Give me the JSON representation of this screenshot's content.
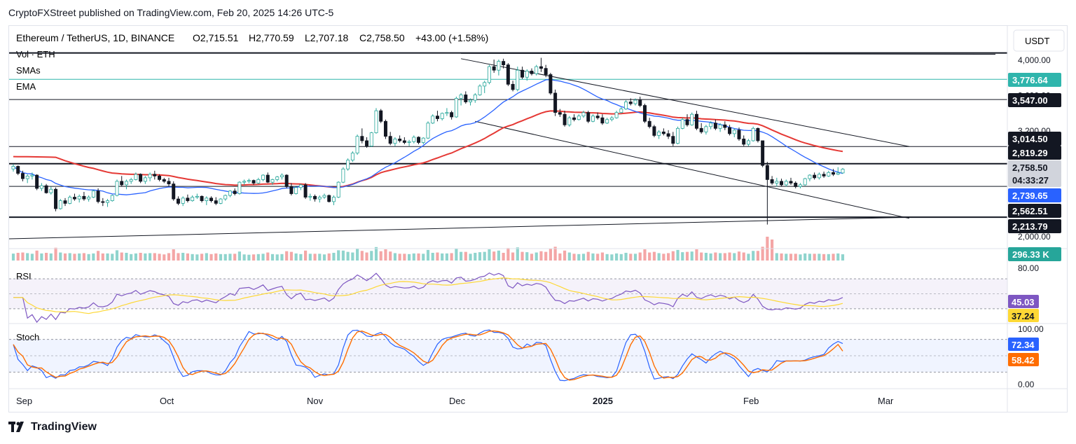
{
  "header": {
    "publisher": "CryptoFXStreet published on TradingView.com, Feb 20, 2025 14:26 UTC-5",
    "symbol": "Ethereum / TetherUS, 1D, BINANCE",
    "open_label": "O",
    "open": "2,715.51",
    "high_label": "H",
    "high": "2,770.59",
    "low_label": "L",
    "low": "2,707.18",
    "close_label": "C",
    "close": "2,758.50",
    "change": "+43.00 (+1.58%)",
    "currency": "USDT"
  },
  "indicators": {
    "vol": "Vol · ETH",
    "smas": "SMAs",
    "ema": "EMA",
    "rsi": "RSI",
    "stoch": "Stoch"
  },
  "price_axis": {
    "ticks": [
      "4,000.00",
      "3,600.00",
      "3,200.00",
      "2,000.00"
    ],
    "labels": [
      {
        "text": "3,776.64",
        "bg": "#2fb5ac",
        "fg": "#ffffff"
      },
      {
        "text": "3,547.00",
        "bg": "#131722",
        "fg": "#ffffff"
      },
      {
        "text": "3,014.50",
        "bg": "#131722",
        "fg": "#ffffff"
      },
      {
        "text": "2,819.29",
        "bg": "#131722",
        "fg": "#ffffff"
      },
      {
        "text": "2,758.50",
        "bg": "#d1d4dc",
        "fg": "#131722"
      },
      {
        "text": "04:33:27",
        "bg": "#d1d4dc",
        "fg": "#131722"
      },
      {
        "text": "2,739.65",
        "bg": "#2962ff",
        "fg": "#ffffff"
      },
      {
        "text": "2,562.51",
        "bg": "#131722",
        "fg": "#ffffff"
      },
      {
        "text": "2,213.79",
        "bg": "#131722",
        "fg": "#ffffff"
      },
      {
        "text": "296.33 K",
        "bg": "#26a69a",
        "fg": "#ffffff"
      }
    ]
  },
  "rsi_axis": {
    "top": "80.00",
    "labels": [
      {
        "text": "45.03",
        "bg": "#7e57c2",
        "fg": "#ffffff"
      },
      {
        "text": "37.24",
        "bg": "#fdd835",
        "fg": "#131722"
      }
    ]
  },
  "stoch_axis": {
    "top": "100.00",
    "bottom": "0.00",
    "labels": [
      {
        "text": "72.34",
        "bg": "#2962ff",
        "fg": "#ffffff"
      },
      {
        "text": "58.42",
        "bg": "#ff6d00",
        "fg": "#ffffff"
      }
    ]
  },
  "time_axis": [
    "Sep",
    "Oct",
    "Nov",
    "Dec",
    "2025",
    "Feb",
    "Mar"
  ],
  "colors": {
    "up": "#26a69a",
    "down": "#131722",
    "ema": "#e53935",
    "sma": "#2962ff",
    "rsi": "#7e57c2",
    "rsi_ma": "#fdd835",
    "stoch_k": "#2962ff",
    "stoch_d": "#ff6d00",
    "vol_up": "#8fd4cd",
    "vol_down": "#f4a6a6"
  },
  "footer": {
    "brand": "TradingView"
  },
  "chart_data": {
    "type": "candlestick",
    "price_ylim": [
      2000,
      4080
    ],
    "ohlc": [
      [
        2760,
        2815,
        2730,
        2790
      ],
      [
        2790,
        2800,
        2690,
        2710
      ],
      [
        2710,
        2740,
        2620,
        2650
      ],
      [
        2650,
        2700,
        2600,
        2680
      ],
      [
        2680,
        2720,
        2640,
        2690
      ],
      [
        2690,
        2700,
        2520,
        2540
      ],
      [
        2540,
        2600,
        2510,
        2570
      ],
      [
        2570,
        2590,
        2480,
        2490
      ],
      [
        2490,
        2560,
        2470,
        2530
      ],
      [
        2530,
        2550,
        2280,
        2310
      ],
      [
        2310,
        2420,
        2300,
        2400
      ],
      [
        2400,
        2430,
        2340,
        2370
      ],
      [
        2370,
        2460,
        2360,
        2440
      ],
      [
        2440,
        2480,
        2400,
        2420
      ],
      [
        2420,
        2470,
        2380,
        2450
      ],
      [
        2450,
        2500,
        2400,
        2420
      ],
      [
        2420,
        2460,
        2390,
        2440
      ],
      [
        2440,
        2520,
        2430,
        2510
      ],
      [
        2510,
        2540,
        2370,
        2390
      ],
      [
        2390,
        2430,
        2340,
        2380
      ],
      [
        2380,
        2420,
        2330,
        2400
      ],
      [
        2400,
        2470,
        2390,
        2460
      ],
      [
        2460,
        2640,
        2450,
        2620
      ],
      [
        2620,
        2680,
        2560,
        2580
      ],
      [
        2580,
        2640,
        2530,
        2620
      ],
      [
        2620,
        2660,
        2590,
        2640
      ],
      [
        2640,
        2720,
        2630,
        2700
      ],
      [
        2700,
        2710,
        2600,
        2620
      ],
      [
        2620,
        2680,
        2590,
        2660
      ],
      [
        2660,
        2720,
        2620,
        2700
      ],
      [
        2700,
        2740,
        2640,
        2680
      ],
      [
        2680,
        2700,
        2620,
        2640
      ],
      [
        2640,
        2660,
        2600,
        2620
      ],
      [
        2620,
        2660,
        2560,
        2590
      ],
      [
        2590,
        2620,
        2400,
        2420
      ],
      [
        2420,
        2450,
        2350,
        2370
      ],
      [
        2370,
        2450,
        2340,
        2430
      ],
      [
        2430,
        2470,
        2380,
        2400
      ],
      [
        2400,
        2460,
        2390,
        2440
      ],
      [
        2440,
        2480,
        2420,
        2450
      ],
      [
        2450,
        2460,
        2380,
        2400
      ],
      [
        2400,
        2450,
        2350,
        2430
      ],
      [
        2430,
        2450,
        2380,
        2400
      ],
      [
        2400,
        2440,
        2350,
        2370
      ],
      [
        2370,
        2430,
        2360,
        2420
      ],
      [
        2420,
        2470,
        2400,
        2460
      ],
      [
        2460,
        2520,
        2440,
        2510
      ],
      [
        2510,
        2540,
        2460,
        2480
      ],
      [
        2480,
        2620,
        2470,
        2610
      ],
      [
        2610,
        2640,
        2580,
        2620
      ],
      [
        2620,
        2650,
        2600,
        2630
      ],
      [
        2630,
        2640,
        2580,
        2600
      ],
      [
        2600,
        2660,
        2590,
        2640
      ],
      [
        2640,
        2700,
        2620,
        2690
      ],
      [
        2690,
        2720,
        2600,
        2610
      ],
      [
        2610,
        2650,
        2580,
        2640
      ],
      [
        2640,
        2680,
        2620,
        2670
      ],
      [
        2670,
        2710,
        2640,
        2690
      ],
      [
        2690,
        2700,
        2540,
        2560
      ],
      [
        2560,
        2600,
        2460,
        2480
      ],
      [
        2480,
        2560,
        2470,
        2550
      ],
      [
        2550,
        2590,
        2520,
        2580
      ],
      [
        2580,
        2600,
        2420,
        2440
      ],
      [
        2440,
        2480,
        2400,
        2450
      ],
      [
        2450,
        2470,
        2390,
        2420
      ],
      [
        2420,
        2460,
        2380,
        2440
      ],
      [
        2440,
        2480,
        2420,
        2460
      ],
      [
        2460,
        2470,
        2380,
        2390
      ],
      [
        2390,
        2460,
        2350,
        2440
      ],
      [
        2440,
        2620,
        2430,
        2610
      ],
      [
        2610,
        2780,
        2600,
        2760
      ],
      [
        2760,
        2880,
        2740,
        2860
      ],
      [
        2860,
        2960,
        2840,
        2940
      ],
      [
        2940,
        3150,
        2920,
        3130
      ],
      [
        3130,
        3220,
        3050,
        3080
      ],
      [
        3080,
        3120,
        3000,
        3020
      ],
      [
        3020,
        3180,
        3010,
        3170
      ],
      [
        3170,
        3450,
        3160,
        3420
      ],
      [
        3420,
        3440,
        3280,
        3300
      ],
      [
        3300,
        3320,
        3100,
        3130
      ],
      [
        3130,
        3180,
        3030,
        3050
      ],
      [
        3050,
        3120,
        3020,
        3100
      ],
      [
        3100,
        3140,
        3060,
        3080
      ],
      [
        3080,
        3120,
        3040,
        3060
      ],
      [
        3060,
        3090,
        3020,
        3070
      ],
      [
        3070,
        3140,
        3050,
        3120
      ],
      [
        3120,
        3130,
        3040,
        3060
      ],
      [
        3060,
        3120,
        3040,
        3110
      ],
      [
        3110,
        3300,
        3100,
        3280
      ],
      [
        3280,
        3380,
        3270,
        3360
      ],
      [
        3360,
        3420,
        3300,
        3330
      ],
      [
        3330,
        3400,
        3310,
        3390
      ],
      [
        3390,
        3450,
        3360,
        3400
      ],
      [
        3400,
        3420,
        3320,
        3350
      ],
      [
        3350,
        3580,
        3340,
        3560
      ],
      [
        3560,
        3620,
        3480,
        3600
      ],
      [
        3600,
        3640,
        3500,
        3520
      ],
      [
        3520,
        3560,
        3480,
        3540
      ],
      [
        3540,
        3620,
        3510,
        3600
      ],
      [
        3600,
        3720,
        3590,
        3700
      ],
      [
        3700,
        3760,
        3620,
        3740
      ],
      [
        3740,
        3940,
        3720,
        3920
      ],
      [
        3920,
        4000,
        3850,
        3880
      ],
      [
        3880,
        4000,
        3820,
        3980
      ],
      [
        3980,
        4010,
        3900,
        3940
      ],
      [
        3940,
        3960,
        3700,
        3720
      ],
      [
        3720,
        3760,
        3640,
        3660
      ],
      [
        3660,
        3920,
        3640,
        3880
      ],
      [
        3880,
        3920,
        3780,
        3800
      ],
      [
        3800,
        3890,
        3760,
        3870
      ],
      [
        3870,
        3900,
        3820,
        3840
      ],
      [
        3840,
        3940,
        3820,
        3920
      ],
      [
        3920,
        4020,
        3860,
        3900
      ],
      [
        3900,
        3940,
        3800,
        3830
      ],
      [
        3830,
        3850,
        3600,
        3620
      ],
      [
        3620,
        3660,
        3360,
        3400
      ],
      [
        3400,
        3440,
        3350,
        3380
      ],
      [
        3380,
        3420,
        3240,
        3260
      ],
      [
        3260,
        3360,
        3240,
        3340
      ],
      [
        3340,
        3380,
        3300,
        3320
      ],
      [
        3320,
        3380,
        3310,
        3360
      ],
      [
        3360,
        3420,
        3340,
        3400
      ],
      [
        3400,
        3420,
        3280,
        3300
      ],
      [
        3300,
        3380,
        3290,
        3360
      ],
      [
        3360,
        3400,
        3320,
        3340
      ],
      [
        3340,
        3380,
        3260,
        3280
      ],
      [
        3280,
        3340,
        3270,
        3320
      ],
      [
        3320,
        3360,
        3300,
        3340
      ],
      [
        3340,
        3420,
        3330,
        3400
      ],
      [
        3400,
        3460,
        3390,
        3440
      ],
      [
        3440,
        3540,
        3430,
        3520
      ],
      [
        3520,
        3560,
        3480,
        3500
      ],
      [
        3500,
        3560,
        3480,
        3540
      ],
      [
        3540,
        3580,
        3460,
        3480
      ],
      [
        3480,
        3500,
        3280,
        3300
      ],
      [
        3300,
        3340,
        3220,
        3240
      ],
      [
        3240,
        3260,
        3120,
        3140
      ],
      [
        3140,
        3200,
        3100,
        3180
      ],
      [
        3180,
        3220,
        3140,
        3160
      ],
      [
        3160,
        3200,
        3100,
        3130
      ],
      [
        3130,
        3180,
        3020,
        3050
      ],
      [
        3050,
        3240,
        3040,
        3220
      ],
      [
        3220,
        3340,
        3210,
        3320
      ],
      [
        3320,
        3380,
        3240,
        3260
      ],
      [
        3260,
        3400,
        3250,
        3380
      ],
      [
        3380,
        3420,
        3200,
        3220
      ],
      [
        3220,
        3280,
        3160,
        3180
      ],
      [
        3180,
        3260,
        3150,
        3240
      ],
      [
        3240,
        3300,
        3210,
        3280
      ],
      [
        3280,
        3320,
        3200,
        3220
      ],
      [
        3220,
        3280,
        3180,
        3260
      ],
      [
        3260,
        3300,
        3200,
        3230
      ],
      [
        3230,
        3260,
        3140,
        3160
      ],
      [
        3160,
        3220,
        3120,
        3200
      ],
      [
        3200,
        3230,
        3080,
        3100
      ],
      [
        3100,
        3140,
        3020,
        3040
      ],
      [
        3040,
        3100,
        3020,
        3080
      ],
      [
        3080,
        3240,
        3070,
        3220
      ],
      [
        3220,
        3230,
        3060,
        3080
      ],
      [
        3080,
        3080,
        2780,
        2800
      ],
      [
        2800,
        2840,
        2130,
        2640
      ],
      [
        2640,
        2680,
        2580,
        2600
      ],
      [
        2600,
        2660,
        2560,
        2620
      ],
      [
        2620,
        2650,
        2560,
        2580
      ],
      [
        2580,
        2640,
        2560,
        2620
      ],
      [
        2620,
        2660,
        2580,
        2600
      ],
      [
        2600,
        2620,
        2540,
        2560
      ],
      [
        2560,
        2600,
        2540,
        2580
      ],
      [
        2580,
        2660,
        2570,
        2650
      ],
      [
        2650,
        2700,
        2620,
        2690
      ],
      [
        2690,
        2720,
        2640,
        2660
      ],
      [
        2660,
        2720,
        2640,
        2700
      ],
      [
        2700,
        2730,
        2660,
        2680
      ],
      [
        2680,
        2740,
        2670,
        2720
      ],
      [
        2720,
        2760,
        2680,
        2700
      ],
      [
        2700,
        2780,
        2690,
        2715
      ],
      [
        2715,
        2771,
        2707,
        2758
      ]
    ],
    "ema_period": 50,
    "sma_period": 20,
    "horizontal_levels": [
      3776.64,
      3547.0,
      3014.5,
      2819.29,
      2562.51,
      2213.79
    ],
    "rsi_ylim": [
      15,
      85
    ],
    "rsi_last": 45.03,
    "rsi_ma_last": 37.24,
    "stoch_ylim": [
      0,
      100
    ],
    "stoch_k_last": 72.34,
    "stoch_d_last": 58.42,
    "volume_last": "296.33 K"
  }
}
